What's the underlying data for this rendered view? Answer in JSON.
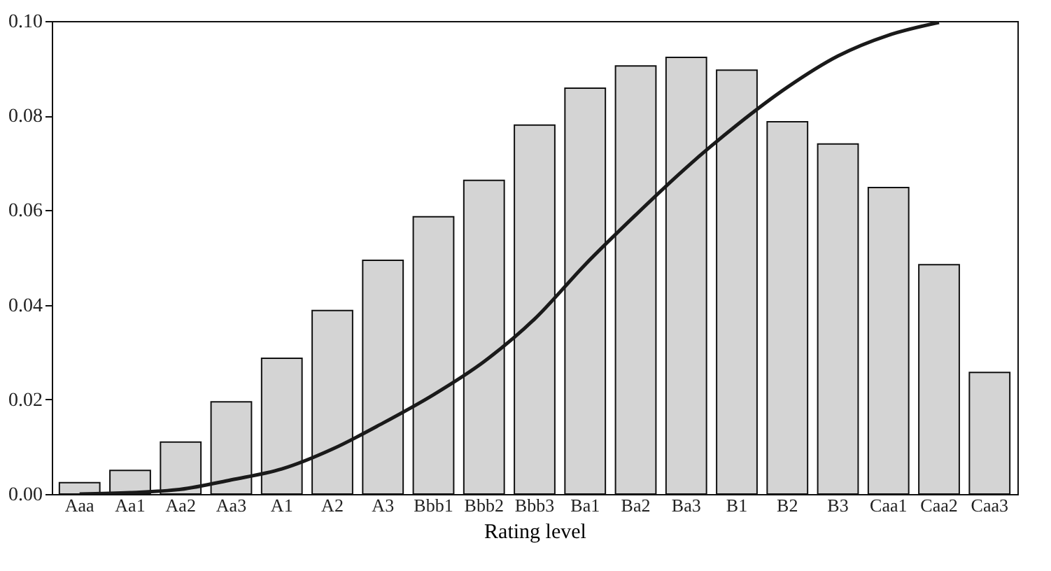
{
  "chart_data": {
    "type": "bar",
    "xlabel": "Rating level",
    "categories": [
      "Aaa",
      "Aa1",
      "Aa2",
      "Aa3",
      "A1",
      "A2",
      "A3",
      "Bbb1",
      "Bbb2",
      "Bbb3",
      "Ba1",
      "Ba2",
      "Ba3",
      "B1",
      "B2",
      "B3",
      "Caa1",
      "Caa2",
      "Caa3"
    ],
    "series": [
      {
        "color": "#d4d4d4",
        "values": [
          0.0024,
          0.005,
          0.011,
          0.0195,
          0.0287,
          0.0388,
          0.0494,
          0.0586,
          0.0663,
          0.078,
          0.0858,
          0.0905,
          0.0923,
          0.0896,
          0.0787,
          0.074,
          0.0648,
          0.0485,
          0.0257
        ]
      },
      {
        "type": "line",
        "color": "#1a1a1a",
        "values": [
          0.0,
          0.0003,
          0.001,
          0.003,
          0.0053,
          0.0095,
          0.015,
          0.021,
          0.028,
          0.037,
          0.0485,
          0.059,
          0.069,
          0.078,
          0.086,
          0.0926,
          0.097,
          0.0997,
          null
        ]
      }
    ],
    "ylim": [
      0,
      0.1
    ],
    "yticks": [
      {
        "value": 0,
        "label": "0.00"
      },
      {
        "value": 0.02,
        "label": "0.02"
      },
      {
        "value": 0.04,
        "label": "0.04"
      },
      {
        "value": 0.06,
        "label": "0.06"
      },
      {
        "value": 0.08,
        "label": "0.08"
      },
      {
        "value": 0.1,
        "label": "0.10"
      }
    ],
    "grid": false
  }
}
